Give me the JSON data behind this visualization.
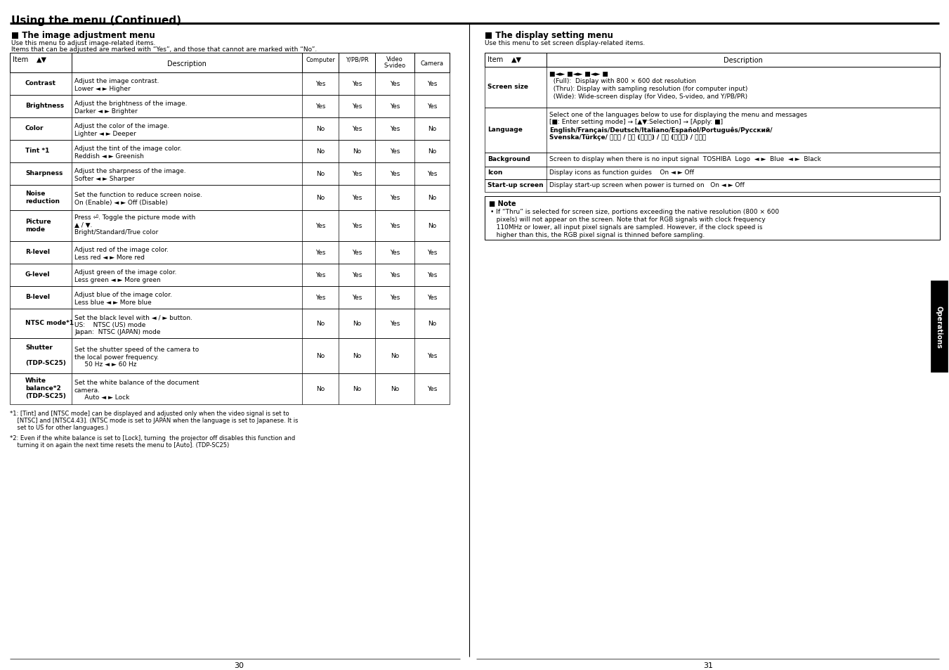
{
  "title": "Using the menu (Continued)",
  "left_section_title": "The image adjustment menu",
  "right_section_title": "The display setting menu",
  "left_intro1": "Use this menu to adjust image-related items.",
  "left_intro2": "Items that can be adjusted are marked with “Yes”, and those that cannot are marked with “No”.",
  "right_intro": "Use this menu to set screen display-related items.",
  "left_rows": [
    {
      "item": "Contrast",
      "desc1": "Adjust the image contrast.",
      "desc2": "Lower ◄ ► Higher",
      "comp": "Yes",
      "ypbpr": "Yes",
      "video": "Yes",
      "cam": "Yes"
    },
    {
      "item": "Brightness",
      "desc1": "Adjust the brightness of the image.",
      "desc2": "Darker ◄ ► Brighter",
      "comp": "Yes",
      "ypbpr": "Yes",
      "video": "Yes",
      "cam": "Yes"
    },
    {
      "item": "Color",
      "desc1": "Adjust the color of the image.",
      "desc2": "Lighter ◄ ► Deeper",
      "comp": "No",
      "ypbpr": "Yes",
      "video": "Yes",
      "cam": "No"
    },
    {
      "item": "Tint *1",
      "desc1": "Adjust the tint of the image color.",
      "desc2": "Reddish ◄ ► Greenish",
      "comp": "No",
      "ypbpr": "No",
      "video": "Yes",
      "cam": "No"
    },
    {
      "item": "Sharpness",
      "desc1": "Adjust the sharpness of the image.",
      "desc2": "Softer ◄ ► Sharper",
      "comp": "No",
      "ypbpr": "Yes",
      "video": "Yes",
      "cam": "Yes"
    },
    {
      "item": "Noise\nreduction",
      "desc1": "Set the function to reduce screen noise.",
      "desc2": "On (Enable) ◄ ► Off (Disable)",
      "comp": "No",
      "ypbpr": "Yes",
      "video": "Yes",
      "cam": "No"
    },
    {
      "item": "Picture\nmode",
      "desc1": "Press ⏎. Toggle the picture mode with",
      "desc2": "▲ / ▼.",
      "desc3": "Bright/Standard/True color",
      "comp": "Yes",
      "ypbpr": "Yes",
      "video": "Yes",
      "cam": "No"
    },
    {
      "item": "R-level",
      "desc1": "Adjust red of the image color.",
      "desc2": "Less red ◄ ► More red",
      "comp": "Yes",
      "ypbpr": "Yes",
      "video": "Yes",
      "cam": "Yes"
    },
    {
      "item": "G-level",
      "desc1": "Adjust green of the image color.",
      "desc2": "Less green ◄ ► More green",
      "comp": "Yes",
      "ypbpr": "Yes",
      "video": "Yes",
      "cam": "Yes"
    },
    {
      "item": "B-level",
      "desc1": "Adjust blue of the image color.",
      "desc2": "Less blue ◄ ► More blue",
      "comp": "Yes",
      "ypbpr": "Yes",
      "video": "Yes",
      "cam": "Yes"
    },
    {
      "item": "NTSC mode*1",
      "desc1": "Set the black level with ◄ / ► button.",
      "desc2": "US:    NTSC (US) mode",
      "desc3": "Japan:  NTSC (JAPAN) mode",
      "comp": "No",
      "ypbpr": "No",
      "video": "Yes",
      "cam": "No"
    },
    {
      "item": "Shutter\n\n(TDP-SC25)",
      "desc1": "Set the shutter speed of the camera to",
      "desc2": "the local power frequency.",
      "desc3": "     50 Hz ◄ ► 60 Hz",
      "comp": "No",
      "ypbpr": "No",
      "video": "No",
      "cam": "Yes"
    },
    {
      "item": "White\nbalance*2\n(TDP-SC25)",
      "desc1": "Set the white balance of the document",
      "desc2": "camera.",
      "desc3": "     Auto ◄ ► Lock",
      "comp": "No",
      "ypbpr": "No",
      "video": "No",
      "cam": "Yes"
    }
  ],
  "right_rows": [
    {
      "item": "Screen size",
      "lines": [
        "■◄► ■◄► ■◄► ■",
        "  (Full):  Display with 800 × 600 dot resolution",
        "  (Thru): Display with sampling resolution (for computer input)",
        "  (Wide): Wide-screen display (for Video, S-video, and Y/PB/PR)"
      ]
    },
    {
      "item": "Language",
      "lines": [
        "Select one of the languages below to use for displaying the menu and messages",
        "[■: Enter setting mode] → [▲▼:Selection] → [Apply: ■]",
        "bold:English/Français/Deutsch/Italiano/Español/Português/Русский/",
        "bold:Svenska/Türkçe/ 日本語 / 中文 (简体字) / 中文 (繁體字) / 한국어"
      ]
    },
    {
      "item": "Background",
      "lines": [
        "Screen to display when there is no input signal  TOSHIBA  Logo  ◄ ►  Blue  ◄ ►  Black"
      ]
    },
    {
      "item": "Icon",
      "lines": [
        "Display icons as function guides    On ◄ ► Off"
      ]
    },
    {
      "item": "Start-up screen",
      "lines": [
        "Display start-up screen when power is turned on   On ◄ ► Off"
      ]
    }
  ],
  "note_lines": [
    "If “Thru” is selected for screen size, portions exceeding the native resolution (800 × 600",
    "pixels) will not appear on the screen. Note that for RGB signals with clock frequency",
    "110MHz or lower, all input pixel signals are sampled. However, if the clock speed is",
    "higher than this, the RGB pixel signal is thinned before sampling."
  ],
  "fn1_lines": [
    "*1: [Tint] and [NTSC mode] can be displayed and adjusted only when the video signal is set to",
    "    [NTSC] and [NTSC4.43]. (NTSC mode is set to JAPAN when the language is set to Japanese. It is",
    "    set to US for other languages.)"
  ],
  "fn2_lines": [
    "*2: Even if the white balance is set to [Lock], turning  the projector off disables this function and",
    "    turning it on again the next time resets the menu to [Auto]. (TDP-SC25)"
  ],
  "page_left": "30",
  "page_right": "31",
  "operations_tab": "Operations"
}
